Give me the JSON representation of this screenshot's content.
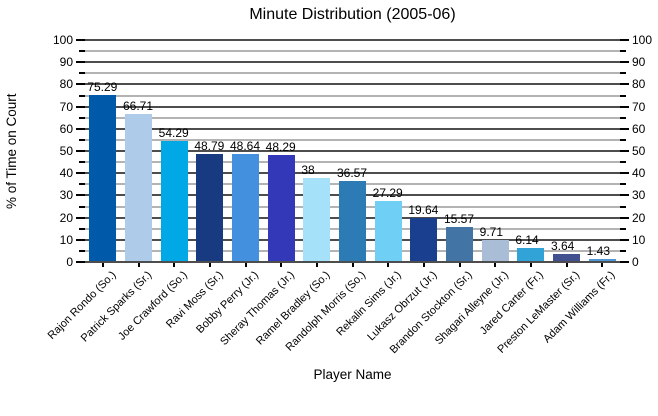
{
  "chart_data": {
    "type": "bar",
    "title": "Minute Distribution (2005-06)",
    "xlabel": "Player Name",
    "ylabel": "% of Time on Court",
    "ylim": [
      0,
      100
    ],
    "y_major_step": 10,
    "y_minor_step": 5,
    "grid": true,
    "legend": "none",
    "dual_y_tick_labels": true,
    "categories": [
      "Rajon Rondo (So.)",
      "Patrick Sparks (Sr.)",
      "Joe Crawford (So.)",
      "Ravi Moss (Sr.)",
      "Bobby Perry (Jr.)",
      "Sheray Thomas (Jr.)",
      "Ramel Bradley (So.)",
      "Randolph Morris (So.)",
      "Rekalin Sims (Jr.)",
      "Lukasz Obrzut (Jr.)",
      "Brandon Stockton (Sr.)",
      "Shagari Alleyne (Jr.)",
      "Jared Carter (Fr.)",
      "Preston LeMaster (Sr.)",
      "Adam Williams (Fr.)"
    ],
    "values": [
      75.29,
      66.71,
      54.29,
      48.79,
      48.64,
      48.29,
      38,
      36.57,
      27.29,
      19.64,
      15.57,
      9.71,
      6.14,
      3.64,
      1.43
    ],
    "value_labels": [
      "75.29",
      "66.71",
      "54.29",
      "48.79",
      "48.64",
      "48.29",
      "38",
      "36.57",
      "27.29",
      "19.64",
      "15.57",
      "9.71",
      "6.14",
      "3.64",
      "1.43"
    ],
    "bar_colors": [
      "#0059A9",
      "#AECBEA",
      "#00A9E5",
      "#173A80",
      "#4290DE",
      "#3238B8",
      "#A5E2FA",
      "#2C7BB5",
      "#6FCFF4",
      "#1A3F8F",
      "#4274A6",
      "#A9BDD7",
      "#32A3D6",
      "#41508F",
      "#4E96D6"
    ]
  },
  "colors": {
    "major_grid": "#4d4d4d",
    "minor_grid": "#b3b3b3",
    "axis": "#000000",
    "text": "#000000",
    "background": "#ffffff"
  }
}
